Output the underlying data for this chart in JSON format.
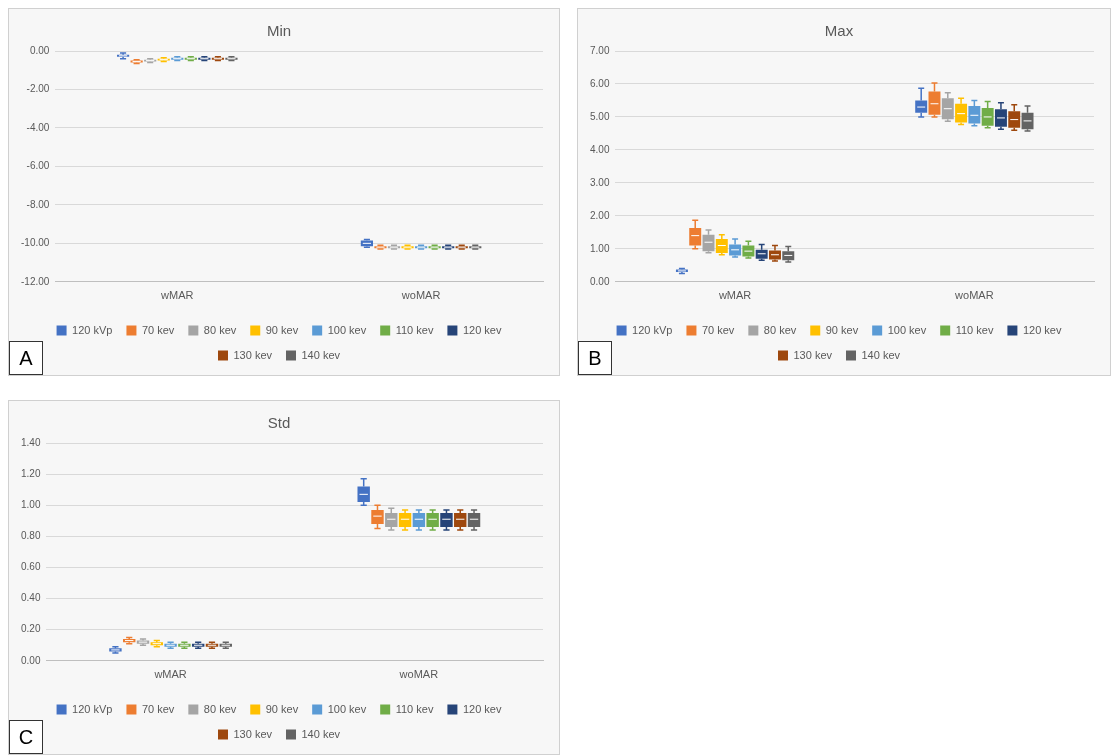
{
  "chart_data": [
    {
      "type": "box",
      "title": "Min",
      "categories": [
        "wMAR",
        "woMAR"
      ],
      "ylim": [
        -12,
        0
      ],
      "yticks": [
        {
          "value": -12,
          "label": "-12.00"
        },
        {
          "value": -10,
          "label": "-10.00"
        },
        {
          "value": -8,
          "label": "-8.00"
        },
        {
          "value": -6,
          "label": "-6.00"
        },
        {
          "value": -4,
          "label": "-4.00"
        },
        {
          "value": -2,
          "label": "-2.00"
        },
        {
          "value": 0,
          "label": "0.00"
        }
      ],
      "grid": "y",
      "legend": "bottom",
      "annotations": [
        "A"
      ],
      "series": [
        {
          "name": "120 kVp",
          "color": "#4472c4",
          "boxes": [
            {
              "low": -0.4,
              "q1": -0.3,
              "median": -0.25,
              "q3": -0.2,
              "high": -0.1
            },
            {
              "low": -10.2,
              "q1": -10.15,
              "median": -10,
              "q3": -9.85,
              "high": -9.8
            }
          ]
        },
        {
          "name": "70 kev",
          "color": "#ed7d31",
          "boxes": [
            {
              "low": -0.65,
              "q1": -0.6,
              "median": -0.55,
              "q3": -0.5,
              "high": -0.45
            },
            {
              "low": -10.3,
              "q1": -10.25,
              "median": -10.2,
              "q3": -10.15,
              "high": -10.1
            }
          ]
        },
        {
          "name": "80 kev",
          "color": "#a5a5a5",
          "boxes": [
            {
              "low": -0.6,
              "q1": -0.55,
              "median": -0.5,
              "q3": -0.45,
              "high": -0.4
            },
            {
              "low": -10.3,
              "q1": -10.25,
              "median": -10.2,
              "q3": -10.15,
              "high": -10.1
            }
          ]
        },
        {
          "name": "90 kev",
          "color": "#ffc000",
          "boxes": [
            {
              "low": -0.55,
              "q1": -0.5,
              "median": -0.45,
              "q3": -0.4,
              "high": -0.35
            },
            {
              "low": -10.3,
              "q1": -10.25,
              "median": -10.2,
              "q3": -10.15,
              "high": -10.1
            }
          ]
        },
        {
          "name": "100 kev",
          "color": "#5b9bd5",
          "boxes": [
            {
              "low": -0.5,
              "q1": -0.45,
              "median": -0.4,
              "q3": -0.35,
              "high": -0.3
            },
            {
              "low": -10.3,
              "q1": -10.25,
              "median": -10.2,
              "q3": -10.15,
              "high": -10.1
            }
          ]
        },
        {
          "name": "110 kev",
          "color": "#70ad47",
          "boxes": [
            {
              "low": -0.5,
              "q1": -0.45,
              "median": -0.4,
              "q3": -0.35,
              "high": -0.3
            },
            {
              "low": -10.3,
              "q1": -10.25,
              "median": -10.2,
              "q3": -10.15,
              "high": -10.1
            }
          ]
        },
        {
          "name": "120 kev",
          "color": "#264478",
          "boxes": [
            {
              "low": -0.5,
              "q1": -0.45,
              "median": -0.4,
              "q3": -0.35,
              "high": -0.3
            },
            {
              "low": -10.3,
              "q1": -10.25,
              "median": -10.2,
              "q3": -10.15,
              "high": -10.1
            }
          ]
        },
        {
          "name": "130 kev",
          "color": "#9e480e",
          "boxes": [
            {
              "low": -0.5,
              "q1": -0.45,
              "median": -0.4,
              "q3": -0.35,
              "high": -0.3
            },
            {
              "low": -10.3,
              "q1": -10.25,
              "median": -10.2,
              "q3": -10.15,
              "high": -10.1
            }
          ]
        },
        {
          "name": "140 kev",
          "color": "#636363",
          "boxes": [
            {
              "low": -0.5,
              "q1": -0.45,
              "median": -0.4,
              "q3": -0.35,
              "high": -0.3
            },
            {
              "low": -10.3,
              "q1": -10.25,
              "median": -10.2,
              "q3": -10.15,
              "high": -10.1
            }
          ]
        }
      ]
    },
    {
      "type": "box",
      "title": "Max",
      "categories": [
        "wMAR",
        "woMAR"
      ],
      "ylim": [
        0,
        7
      ],
      "yticks": [
        {
          "value": 0,
          "label": "0.00"
        },
        {
          "value": 1,
          "label": "1.00"
        },
        {
          "value": 2,
          "label": "2.00"
        },
        {
          "value": 3,
          "label": "3.00"
        },
        {
          "value": 4,
          "label": "4.00"
        },
        {
          "value": 5,
          "label": "5.00"
        },
        {
          "value": 6,
          "label": "6.00"
        },
        {
          "value": 7,
          "label": "7.00"
        }
      ],
      "grid": "y",
      "legend": "bottom",
      "annotations": [
        "B"
      ],
      "series": [
        {
          "name": "120 kVp",
          "color": "#4472c4",
          "boxes": [
            {
              "low": 0.25,
              "q1": 0.3,
              "median": 0.33,
              "q3": 0.37,
              "high": 0.4
            },
            {
              "low": 5,
              "q1": 5.13,
              "median": 5.3,
              "q3": 5.5,
              "high": 5.87
            }
          ]
        },
        {
          "name": "70 kev",
          "color": "#ed7d31",
          "boxes": [
            {
              "low": 1,
              "q1": 1.1,
              "median": 1.4,
              "q3": 1.63,
              "high": 1.87
            },
            {
              "low": 5,
              "q1": 5.07,
              "median": 5.4,
              "q3": 5.77,
              "high": 6.03
            }
          ]
        },
        {
          "name": "80 kev",
          "color": "#a5a5a5",
          "boxes": [
            {
              "low": 0.88,
              "q1": 0.93,
              "median": 1.2,
              "q3": 1.43,
              "high": 1.57
            },
            {
              "low": 4.87,
              "q1": 4.93,
              "median": 5.25,
              "q3": 5.57,
              "high": 5.73
            }
          ]
        },
        {
          "name": "90 kev",
          "color": "#ffc000",
          "boxes": [
            {
              "low": 0.82,
              "q1": 0.87,
              "median": 1.1,
              "q3": 1.3,
              "high": 1.43
            },
            {
              "low": 4.77,
              "q1": 4.83,
              "median": 5.1,
              "q3": 5.4,
              "high": 5.57
            }
          ]
        },
        {
          "name": "100 kev",
          "color": "#5b9bd5",
          "boxes": [
            {
              "low": 0.75,
              "q1": 0.8,
              "median": 0.97,
              "q3": 1.13,
              "high": 1.3
            },
            {
              "low": 4.73,
              "q1": 4.8,
              "median": 5.05,
              "q3": 5.33,
              "high": 5.5
            }
          ]
        },
        {
          "name": "110 kev",
          "color": "#70ad47",
          "boxes": [
            {
              "low": 0.72,
              "q1": 0.77,
              "median": 0.93,
              "q3": 1.1,
              "high": 1.23
            },
            {
              "low": 4.67,
              "q1": 4.73,
              "median": 5,
              "q3": 5.27,
              "high": 5.47
            }
          ]
        },
        {
          "name": "120 kev",
          "color": "#264478",
          "boxes": [
            {
              "low": 0.65,
              "q1": 0.7,
              "median": 0.85,
              "q3": 0.97,
              "high": 1.13
            },
            {
              "low": 4.63,
              "q1": 4.7,
              "median": 4.97,
              "q3": 5.23,
              "high": 5.43
            }
          ]
        },
        {
          "name": "130 kev",
          "color": "#9e480e",
          "boxes": [
            {
              "low": 0.63,
              "q1": 0.68,
              "median": 0.82,
              "q3": 0.95,
              "high": 1.1
            },
            {
              "low": 4.6,
              "q1": 4.67,
              "median": 4.92,
              "q3": 5.17,
              "high": 5.37
            }
          ]
        },
        {
          "name": "140 kev",
          "color": "#636363",
          "boxes": [
            {
              "low": 0.6,
              "q1": 0.65,
              "median": 0.8,
              "q3": 0.93,
              "high": 1.07
            },
            {
              "low": 4.57,
              "q1": 4.63,
              "median": 4.88,
              "q3": 5.13,
              "high": 5.33
            }
          ]
        }
      ]
    },
    {
      "type": "box",
      "title": "Std",
      "categories": [
        "wMAR",
        "woMAR"
      ],
      "ylim": [
        0,
        1.4
      ],
      "yticks": [
        {
          "value": 0,
          "label": "0.00"
        },
        {
          "value": 0.2,
          "label": "0.20"
        },
        {
          "value": 0.4,
          "label": "0.40"
        },
        {
          "value": 0.6,
          "label": "0.60"
        },
        {
          "value": 0.8,
          "label": "0.80"
        },
        {
          "value": 1,
          "label": "1.00"
        },
        {
          "value": 1.2,
          "label": "1.20"
        },
        {
          "value": 1.4,
          "label": "1.40"
        }
      ],
      "grid": "y",
      "legend": "bottom",
      "annotations": [
        "C"
      ],
      "series": [
        {
          "name": "120 kVp",
          "color": "#4472c4",
          "boxes": [
            {
              "low": 0.05,
              "q1": 0.06,
              "median": 0.07,
              "q3": 0.08,
              "high": 0.09
            },
            {
              "low": 1,
              "q1": 1.02,
              "median": 1.07,
              "q3": 1.12,
              "high": 1.17
            }
          ]
        },
        {
          "name": "70 kev",
          "color": "#ed7d31",
          "boxes": [
            {
              "low": 0.11,
              "q1": 0.12,
              "median": 0.13,
              "q3": 0.14,
              "high": 0.15
            },
            {
              "low": 0.85,
              "q1": 0.88,
              "median": 0.93,
              "q3": 0.97,
              "high": 1
            }
          ]
        },
        {
          "name": "80 kev",
          "color": "#a5a5a5",
          "boxes": [
            {
              "low": 0.1,
              "q1": 0.11,
              "median": 0.12,
              "q3": 0.13,
              "high": 0.14
            },
            {
              "low": 0.84,
              "q1": 0.86,
              "median": 0.91,
              "q3": 0.95,
              "high": 0.98
            }
          ]
        },
        {
          "name": "90 kev",
          "color": "#ffc000",
          "boxes": [
            {
              "low": 0.09,
              "q1": 0.1,
              "median": 0.11,
              "q3": 0.12,
              "high": 0.13
            },
            {
              "low": 0.84,
              "q1": 0.86,
              "median": 0.91,
              "q3": 0.95,
              "high": 0.97
            }
          ]
        },
        {
          "name": "100 kev",
          "color": "#5b9bd5",
          "boxes": [
            {
              "low": 0.08,
              "q1": 0.09,
              "median": 0.1,
              "q3": 0.11,
              "high": 0.12
            },
            {
              "low": 0.84,
              "q1": 0.86,
              "median": 0.91,
              "q3": 0.95,
              "high": 0.97
            }
          ]
        },
        {
          "name": "110 kev",
          "color": "#70ad47",
          "boxes": [
            {
              "low": 0.08,
              "q1": 0.09,
              "median": 0.1,
              "q3": 0.11,
              "high": 0.12
            },
            {
              "low": 0.84,
              "q1": 0.86,
              "median": 0.91,
              "q3": 0.95,
              "high": 0.97
            }
          ]
        },
        {
          "name": "120 kev",
          "color": "#264478",
          "boxes": [
            {
              "low": 0.08,
              "q1": 0.09,
              "median": 0.1,
              "q3": 0.11,
              "high": 0.12
            },
            {
              "low": 0.84,
              "q1": 0.86,
              "median": 0.91,
              "q3": 0.95,
              "high": 0.97
            }
          ]
        },
        {
          "name": "130 kev",
          "color": "#9e480e",
          "boxes": [
            {
              "low": 0.08,
              "q1": 0.09,
              "median": 0.1,
              "q3": 0.11,
              "high": 0.12
            },
            {
              "low": 0.84,
              "q1": 0.86,
              "median": 0.91,
              "q3": 0.95,
              "high": 0.97
            }
          ]
        },
        {
          "name": "140 kev",
          "color": "#636363",
          "boxes": [
            {
              "low": 0.08,
              "q1": 0.09,
              "median": 0.1,
              "q3": 0.11,
              "high": 0.12
            },
            {
              "low": 0.84,
              "q1": 0.86,
              "median": 0.91,
              "q3": 0.95,
              "high": 0.97
            }
          ]
        }
      ]
    }
  ]
}
